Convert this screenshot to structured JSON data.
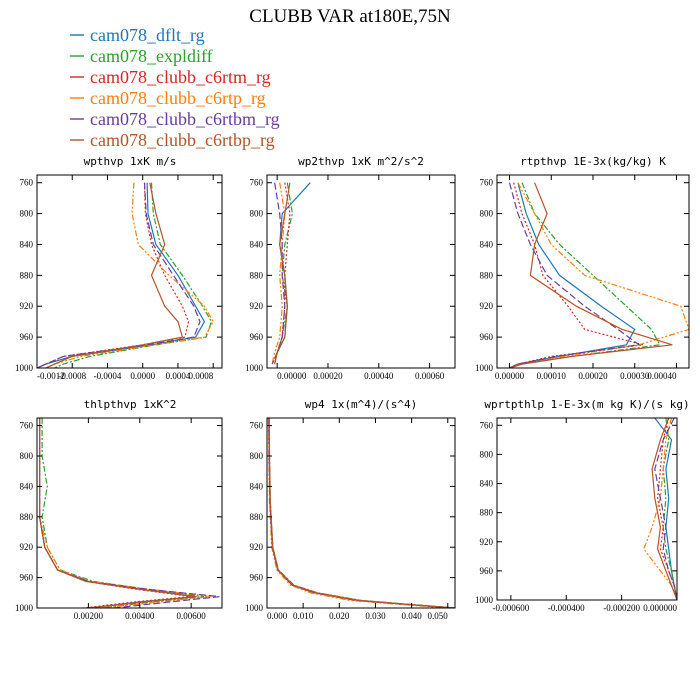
{
  "figure": {
    "title": "CLUBB VAR at180E,75N"
  },
  "legend": [
    {
      "name": "cam078_dflt_rg",
      "color": "#1f77b4",
      "dash": ""
    },
    {
      "name": "cam078_expldiff",
      "color": "#2ca02c",
      "dash": "6,2,2,2"
    },
    {
      "name": "cam078_clubb_c6rtm_rg",
      "color": "#d62728",
      "dash": "2,2"
    },
    {
      "name": "cam078_clubb_c6rtp_rg",
      "color": "#ff7f0e",
      "dash": "6,2,2,2,2,2"
    },
    {
      "name": "cam078_clubb_c6rtbm_rg",
      "color": "#6a3d9a",
      "dash": "7,3"
    },
    {
      "name": "cam078_clubb_c6rtbp_rg",
      "color": "#b5532a",
      "dash": ""
    }
  ],
  "chart_data": [
    {
      "type": "line",
      "title": "wpthvp  1xK m/s",
      "xlim": [
        -0.0012,
        0.0009
      ],
      "ylim": [
        1000,
        750
      ],
      "xticks": [
        -0.0012,
        -0.0008,
        -0.0004,
        0,
        0.0004,
        0.0008
      ],
      "xticklabels": [
        "-0.0012",
        "-0.0008",
        "-0.0004",
        "0.0000",
        "0.0004",
        "0.0008"
      ],
      "yticks": [
        760,
        800,
        840,
        880,
        920,
        960,
        1000
      ],
      "y": [
        760,
        800,
        840,
        880,
        920,
        940,
        960,
        970,
        985,
        995,
        1000
      ],
      "series": [
        {
          "x": [
            5e-05,
            6e-05,
            0.00015,
            0.0004,
            0.0006,
            0.0007,
            0.0006,
            0.0001,
            -0.0008,
            -0.0011,
            -0.0012
          ]
        },
        {
          "x": [
            0.0001,
            0.00012,
            0.0002,
            0.00045,
            0.00068,
            0.00078,
            0.00072,
            0.00015,
            -0.0006,
            -0.0009,
            -0.001
          ]
        },
        {
          "x": [
            2e-05,
            3e-05,
            0.0001,
            0.00025,
            0.00045,
            0.00052,
            0.00048,
            0.0,
            -0.0009,
            -0.0011,
            -0.0012
          ]
        },
        {
          "x": [
            -0.0001,
            -0.00012,
            -5e-05,
            0.0003,
            0.0007,
            0.0008,
            0.0007,
            0.00015,
            -0.0007,
            -0.001,
            -0.0011
          ]
        },
        {
          "x": [
            2e-05,
            4e-05,
            0.00012,
            0.00035,
            0.00058,
            0.00065,
            0.00058,
            5e-05,
            -0.0009,
            -0.0011,
            -0.0012
          ]
        },
        {
          "x": [
            8e-05,
            0.00015,
            0.00025,
            0.0001,
            0.00025,
            0.0004,
            0.00045,
            0.0,
            -0.0008,
            -0.001,
            -0.0011
          ]
        }
      ]
    },
    {
      "type": "line",
      "title": "wp2thvp  1xK m^2/s^2",
      "xlim": [
        -4e-05,
        0.0007
      ],
      "ylim": [
        1000,
        750
      ],
      "xticks": [
        0,
        0.0002,
        0.0004,
        0.0006
      ],
      "xticklabels": [
        "0.00000",
        "0.00020",
        "0.00040",
        "0.00060"
      ],
      "yticks": [
        760,
        800,
        840,
        880,
        920,
        960,
        1000
      ],
      "y": [
        760,
        800,
        840,
        880,
        920,
        960,
        980,
        995
      ],
      "series": [
        {
          "x": [
            0.00013,
            2e-05,
            1e-05,
            3e-05,
            4e-05,
            3e-05,
            0.0,
            -1e-05
          ]
        },
        {
          "x": [
            4e-05,
            6e-05,
            3e-05,
            2e-05,
            4e-05,
            2e-05,
            0.0,
            -1e-05
          ]
        },
        {
          "x": [
            3e-05,
            5e-05,
            4e-05,
            3e-05,
            3e-05,
            2e-05,
            0.0,
            -2e-05
          ]
        },
        {
          "x": [
            1e-05,
            3e-05,
            2e-05,
            1e-05,
            2e-05,
            1e-05,
            -1e-05,
            -2e-05
          ]
        },
        {
          "x": [
            -1e-05,
            1e-05,
            2e-05,
            2e-05,
            3e-05,
            2e-05,
            0.0,
            -2e-05
          ]
        },
        {
          "x": [
            5e-05,
            3e-05,
            1e-05,
            3e-05,
            4e-05,
            3e-05,
            0.0,
            -1e-05
          ]
        }
      ]
    },
    {
      "type": "line",
      "title": "rtpthvp  1E-3x(kg/kg) K",
      "xlim": [
        -3e-05,
        0.00043
      ],
      "ylim": [
        1000,
        750
      ],
      "xticks": [
        0,
        0.0001,
        0.0002,
        0.0003,
        0.0004
      ],
      "xticklabels": [
        "0.00000",
        "0.00010",
        "0.00020",
        "0.00030",
        "0.00040"
      ],
      "yticks": [
        760,
        800,
        840,
        880,
        920,
        960,
        1000
      ],
      "y": [
        760,
        800,
        840,
        880,
        920,
        950,
        970,
        985,
        995,
        1000
      ],
      "series": [
        {
          "x": [
            2e-05,
            4e-05,
            7e-05,
            0.00012,
            0.00022,
            0.0003,
            0.00028,
            0.00012,
            2e-05,
            0.0
          ]
        },
        {
          "x": [
            3e-05,
            6e-05,
            0.00012,
            0.0002,
            0.00028,
            0.00034,
            0.00036,
            0.00015,
            3e-05,
            0.0
          ]
        },
        {
          "x": [
            1e-05,
            3e-05,
            6e-05,
            8e-05,
            0.00014,
            0.00018,
            0.00032,
            0.0001,
            2e-05,
            0.0
          ]
        },
        {
          "x": [
            2e-05,
            6e-05,
            0.0001,
            0.00018,
            0.00041,
            0.00043,
            0.00031,
            0.00013,
            3e-05,
            0.0
          ]
        },
        {
          "x": [
            0.0,
            2e-05,
            5e-05,
            9e-05,
            0.00018,
            0.00026,
            0.00031,
            0.00011,
            2e-05,
            0.0
          ]
        },
        {
          "x": [
            6e-05,
            9e-05,
            6e-05,
            5e-05,
            0.00016,
            0.00027,
            0.00039,
            0.00015,
            3e-05,
            0.0
          ]
        }
      ]
    },
    {
      "type": "line",
      "title": "thlpthvp  1xK^2",
      "xlim": [
        0,
        0.0072
      ],
      "ylim": [
        1000,
        750
      ],
      "xticks": [
        0.002,
        0.004,
        0.006
      ],
      "xticklabels": [
        "0.00200",
        "0.00400",
        "0.00600"
      ],
      "yticks": [
        760,
        800,
        840,
        880,
        920,
        960,
        1000
      ],
      "y": [
        750,
        800,
        840,
        880,
        920,
        950,
        965,
        975,
        985,
        992,
        1000
      ],
      "series": [
        {
          "x": [
            0.0001,
            0.0001,
            0.0001,
            0.0001,
            0.0003,
            0.0008,
            0.002,
            0.004,
            0.0062,
            0.004,
            0.002
          ]
        },
        {
          "x": [
            0.0002,
            0.0002,
            0.0004,
            0.0002,
            0.0004,
            0.0009,
            0.0022,
            0.0042,
            0.0065,
            0.0045,
            0.0025
          ]
        },
        {
          "x": [
            0.0001,
            0.0001,
            0.0001,
            0.0001,
            0.0003,
            0.0008,
            0.0019,
            0.0038,
            0.006,
            0.0038,
            0.0018
          ]
        },
        {
          "x": [
            0.0001,
            0.0001,
            0.0001,
            0.0001,
            0.0004,
            0.0009,
            0.0021,
            0.0043,
            0.0068,
            0.0048,
            0.0025
          ]
        },
        {
          "x": [
            0.0001,
            0.0001,
            0.0001,
            0.0001,
            0.0003,
            0.0008,
            0.002,
            0.0042,
            0.0071,
            0.0052,
            0.003
          ]
        },
        {
          "x": [
            0.0001,
            0.0001,
            0.0001,
            0.0001,
            0.0003,
            0.0008,
            0.0019,
            0.0039,
            0.0062,
            0.0042,
            0.002
          ]
        }
      ]
    },
    {
      "type": "line",
      "title": "wp4  1x(m^4)/(s^4)",
      "xlim": [
        0,
        0.052
      ],
      "ylim": [
        1000,
        750
      ],
      "xticks": [
        0,
        0.01,
        0.02,
        0.03,
        0.04,
        0.05
      ],
      "xticklabels": [
        "0.000",
        "0.010",
        "0.020",
        "0.030",
        "0.040",
        "0.050"
      ],
      "yticks": [
        760,
        800,
        840,
        880,
        920,
        960,
        1000
      ],
      "y": [
        750,
        800,
        860,
        920,
        950,
        970,
        980,
        990,
        995,
        1000
      ],
      "series": [
        {
          "x": [
            0.0005,
            0.0006,
            0.0008,
            0.0015,
            0.003,
            0.007,
            0.013,
            0.025,
            0.038,
            0.052
          ]
        },
        {
          "x": [
            0.0006,
            0.0007,
            0.0009,
            0.0016,
            0.0032,
            0.0075,
            0.014,
            0.026,
            0.039,
            0.052
          ]
        },
        {
          "x": [
            0.0005,
            0.0006,
            0.0008,
            0.0014,
            0.0029,
            0.007,
            0.013,
            0.024,
            0.037,
            0.051
          ]
        },
        {
          "x": [
            0.0004,
            0.0005,
            0.0007,
            0.0013,
            0.0027,
            0.0065,
            0.012,
            0.023,
            0.036,
            0.05
          ]
        },
        {
          "x": [
            0.0005,
            0.0006,
            0.0008,
            0.0015,
            0.003,
            0.0072,
            0.0135,
            0.025,
            0.038,
            0.052
          ]
        },
        {
          "x": [
            0.0006,
            0.0007,
            0.0009,
            0.0016,
            0.0031,
            0.0073,
            0.0138,
            0.0255,
            0.0385,
            0.052
          ]
        }
      ]
    },
    {
      "type": "line",
      "title": "wprtpthlp  1-E-3x(m kg K)/(s kg)",
      "xlim": [
        -0.00065,
        0
      ],
      "ylim": [
        1000,
        750
      ],
      "xticks": [
        -0.0006,
        -0.0004,
        -0.0002,
        0
      ],
      "xticklabels": [
        "-0.000600",
        "-0.000400",
        "-0.000200",
        "0.000000"
      ],
      "yticks": [
        760,
        800,
        840,
        880,
        920,
        960,
        1000
      ],
      "y": [
        750,
        780,
        820,
        860,
        900,
        930,
        960,
        980,
        1000
      ],
      "series": [
        {
          "x": [
            -8e-05,
            -2e-05,
            -4e-05,
            -3e-05,
            -4e-05,
            -3e-05,
            -2e-05,
            -1e-05,
            0
          ]
        },
        {
          "x": [
            -4e-05,
            -3e-05,
            -5e-05,
            -4e-05,
            -5e-05,
            -4e-05,
            -2e-05,
            -1e-05,
            0
          ]
        },
        {
          "x": [
            -3e-05,
            -5e-05,
            -6e-05,
            -7e-05,
            -5e-05,
            -6e-05,
            -3e-05,
            -1e-05,
            0
          ]
        },
        {
          "x": [
            -2e-05,
            -4e-05,
            -5e-05,
            -6e-05,
            -9e-05,
            -0.00012,
            -6e-05,
            -2e-05,
            0
          ]
        },
        {
          "x": [
            -1e-05,
            -5e-05,
            -8e-05,
            -6e-05,
            -4e-05,
            -5e-05,
            -3e-05,
            -1e-05,
            0
          ]
        },
        {
          "x": [
            -3e-05,
            -6e-05,
            -9e-05,
            -8e-05,
            -6e-05,
            -7e-05,
            -4e-05,
            -2e-05,
            0
          ]
        }
      ]
    }
  ]
}
